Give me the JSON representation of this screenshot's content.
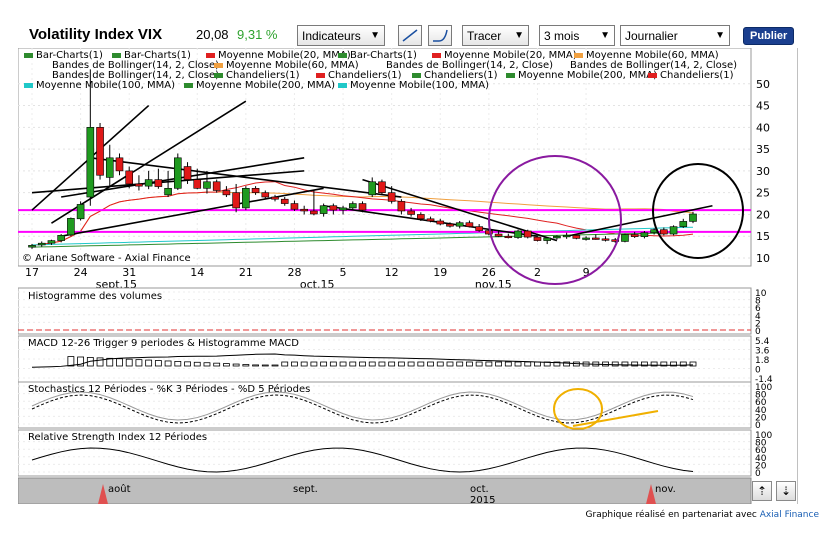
{
  "header": {
    "title": "Volatility Index VIX",
    "price": "20,08",
    "change": "9,31 %",
    "indicators_label": "Indicateurs",
    "draw_label": "Tracer",
    "period_value": "3 mois",
    "interval_value": "Journalier",
    "publish_label": "Publier"
  },
  "legend": [
    {
      "label": "Bar-Charts(1)",
      "color": "#2e8b2e"
    },
    {
      "label": "Bar-Charts(1)",
      "color": "#2e8b2e"
    },
    {
      "label": "Moyenne Mobile(20, MMA)",
      "color": "#e02020"
    },
    {
      "label": "Bar-Charts(1)",
      "color": "#2e8b2e"
    },
    {
      "label": "Moyenne Mobile(20, MMA)",
      "color": "#e02020"
    },
    {
      "label": "Moyenne Mobile(60, MMA)",
      "color": "#f0a040"
    },
    {
      "label": "Bandes de Bollinger(14, 2, Close)",
      "color": "#ffffff"
    },
    {
      "label": "Moyenne Mobile(60, MMA)",
      "color": "#f0a040"
    },
    {
      "label": "Bandes de Bollinger(14, 2, Close)",
      "color": "#ffffff"
    },
    {
      "label": "Bandes de Bollinger(14, 2, Close)",
      "color": "#ffffff"
    },
    {
      "label": "Bandes de Bollinger(14, 2, Close)",
      "color": "#ffffff"
    },
    {
      "label": "Chandeliers(1)",
      "color": "#2e8b2e"
    },
    {
      "label": "Chandeliers(1)",
      "color": "#e02020"
    },
    {
      "label": "Chandeliers(1)",
      "color": "#2e8b2e"
    },
    {
      "label": "Moyenne Mobile(200, MMA)",
      "color": "#2e8b2e"
    },
    {
      "label": "Chandeliers(1)",
      "color": "#e02020"
    },
    {
      "label": "Moyenne Mobile(100, MMA)",
      "color": "#20c8c8"
    },
    {
      "label": "Moyenne Mobile(200, MMA)",
      "color": "#2e8b2e"
    },
    {
      "label": "Moyenne Mobile(100, MMA)",
      "color": "#20c8c8"
    }
  ],
  "copyright": "© Ariane Software - Axial Finance",
  "panels": {
    "volume_title": "Histogramme des volumes",
    "macd_title": "MACD 12-26   Trigger 9 periodes & Histogramme MACD",
    "stoch_title": "Stochastics 12 Périodes  -  %K 3 Périodes  -  %D 5 Périodes",
    "rsi_title": "Relative Strength Index 12 Périodes"
  },
  "footer": {
    "text": "Graphique réalisé en partenariat avec",
    "link": "Axial Finance"
  },
  "chart_data": {
    "type": "candlestick",
    "x_ticks": [
      "17",
      "24",
      "31",
      "14",
      "21",
      "28",
      "5",
      "12",
      "19",
      "26",
      "2",
      "9"
    ],
    "month_labels": [
      "sept.15",
      "oct.15",
      "nov.15"
    ],
    "ylim": [
      10,
      55
    ],
    "y_ticks": [
      10,
      15,
      20,
      25,
      30,
      35,
      40,
      45,
      50
    ],
    "candles": [
      {
        "o": 12.5,
        "h": 13.2,
        "l": 12.1,
        "c": 12.9
      },
      {
        "o": 13.0,
        "h": 13.8,
        "l": 12.6,
        "c": 13.4
      },
      {
        "o": 13.4,
        "h": 14.2,
        "l": 13.0,
        "c": 14.0
      },
      {
        "o": 14.0,
        "h": 15.5,
        "l": 13.6,
        "c": 15.2
      },
      {
        "o": 15.3,
        "h": 19.3,
        "l": 15.0,
        "c": 19.1
      },
      {
        "o": 19.0,
        "h": 23.0,
        "l": 18.6,
        "c": 22.3
      },
      {
        "o": 24.0,
        "h": 53.3,
        "l": 22.0,
        "c": 40.0
      },
      {
        "o": 40.0,
        "h": 41.0,
        "l": 28.0,
        "c": 29.0
      },
      {
        "o": 28.5,
        "h": 36.0,
        "l": 26.5,
        "c": 33.0
      },
      {
        "o": 33.0,
        "h": 34.0,
        "l": 29.0,
        "c": 30.0
      },
      {
        "o": 30.0,
        "h": 31.0,
        "l": 26.0,
        "c": 27.0
      },
      {
        "o": 27.0,
        "h": 29.0,
        "l": 25.5,
        "c": 26.5
      },
      {
        "o": 26.5,
        "h": 30.0,
        "l": 25.8,
        "c": 28.0
      },
      {
        "o": 28.0,
        "h": 30.5,
        "l": 25.9,
        "c": 26.4
      },
      {
        "o": 24.5,
        "h": 30.0,
        "l": 24.0,
        "c": 26.0
      },
      {
        "o": 26.0,
        "h": 34.0,
        "l": 25.6,
        "c": 33.0
      },
      {
        "o": 31.0,
        "h": 32.0,
        "l": 27.0,
        "c": 28.0
      },
      {
        "o": 28.0,
        "h": 30.5,
        "l": 25.8,
        "c": 26.0
      },
      {
        "o": 26.0,
        "h": 30.0,
        "l": 24.8,
        "c": 27.5
      },
      {
        "o": 27.5,
        "h": 28.0,
        "l": 25.0,
        "c": 25.5
      },
      {
        "o": 25.5,
        "h": 26.5,
        "l": 24.0,
        "c": 24.5
      },
      {
        "o": 25.0,
        "h": 27.0,
        "l": 20.5,
        "c": 21.5
      },
      {
        "o": 21.5,
        "h": 26.5,
        "l": 21.0,
        "c": 26.0
      },
      {
        "o": 26.0,
        "h": 26.5,
        "l": 24.5,
        "c": 25.0
      },
      {
        "o": 25.0,
        "h": 25.5,
        "l": 23.5,
        "c": 24.0
      },
      {
        "o": 24.0,
        "h": 24.5,
        "l": 23.0,
        "c": 23.5
      },
      {
        "o": 23.5,
        "h": 24.0,
        "l": 22.0,
        "c": 22.5
      },
      {
        "o": 22.5,
        "h": 23.2,
        "l": 20.8,
        "c": 21.2
      },
      {
        "o": 21.2,
        "h": 22.0,
        "l": 20.0,
        "c": 20.8
      },
      {
        "o": 20.8,
        "h": 25.5,
        "l": 19.8,
        "c": 20.1
      },
      {
        "o": 20.2,
        "h": 22.5,
        "l": 19.5,
        "c": 22.0
      },
      {
        "o": 22.0,
        "h": 22.5,
        "l": 20.0,
        "c": 21.0
      },
      {
        "o": 21.0,
        "h": 22.0,
        "l": 20.0,
        "c": 21.5
      },
      {
        "o": 21.5,
        "h": 23.0,
        "l": 21.0,
        "c": 22.5
      },
      {
        "o": 22.5,
        "h": 23.0,
        "l": 20.5,
        "c": 21.0
      },
      {
        "o": 24.5,
        "h": 28.5,
        "l": 24.0,
        "c": 27.5
      },
      {
        "o": 27.5,
        "h": 28.0,
        "l": 24.5,
        "c": 25.0
      },
      {
        "o": 25.0,
        "h": 26.5,
        "l": 22.5,
        "c": 23.0
      },
      {
        "o": 23.0,
        "h": 23.5,
        "l": 20.0,
        "c": 20.8
      },
      {
        "o": 20.8,
        "h": 21.5,
        "l": 19.5,
        "c": 20.0
      },
      {
        "o": 20.0,
        "h": 20.5,
        "l": 18.5,
        "c": 19.0
      },
      {
        "o": 19.0,
        "h": 19.5,
        "l": 18.2,
        "c": 18.5
      },
      {
        "o": 18.5,
        "h": 19.0,
        "l": 17.5,
        "c": 17.8
      },
      {
        "o": 17.8,
        "h": 18.2,
        "l": 17.0,
        "c": 17.3
      },
      {
        "o": 17.3,
        "h": 18.5,
        "l": 16.8,
        "c": 18.1
      },
      {
        "o": 18.1,
        "h": 18.6,
        "l": 17.0,
        "c": 17.2
      },
      {
        "o": 17.2,
        "h": 17.8,
        "l": 16.0,
        "c": 16.3
      },
      {
        "o": 16.3,
        "h": 16.8,
        "l": 15.2,
        "c": 15.5
      },
      {
        "o": 15.5,
        "h": 16.2,
        "l": 14.8,
        "c": 15.0
      },
      {
        "o": 15.0,
        "h": 15.6,
        "l": 14.5,
        "c": 14.7
      },
      {
        "o": 14.7,
        "h": 16.5,
        "l": 14.4,
        "c": 16.2
      },
      {
        "o": 16.2,
        "h": 16.5,
        "l": 14.5,
        "c": 14.8
      },
      {
        "o": 14.8,
        "h": 15.0,
        "l": 13.8,
        "c": 14.0
      },
      {
        "o": 14.0,
        "h": 14.8,
        "l": 13.2,
        "c": 14.6
      },
      {
        "o": 14.6,
        "h": 15.2,
        "l": 14.2,
        "c": 15.0
      },
      {
        "o": 15.0,
        "h": 15.8,
        "l": 14.4,
        "c": 15.2
      },
      {
        "o": 15.2,
        "h": 15.5,
        "l": 14.3,
        "c": 14.5
      },
      {
        "o": 14.5,
        "h": 15.0,
        "l": 14.0,
        "c": 14.6
      },
      {
        "o": 14.6,
        "h": 15.4,
        "l": 14.2,
        "c": 14.4
      },
      {
        "o": 14.4,
        "h": 15.0,
        "l": 13.8,
        "c": 14.2
      },
      {
        "o": 14.2,
        "h": 14.6,
        "l": 13.5,
        "c": 13.8
      },
      {
        "o": 13.8,
        "h": 15.6,
        "l": 13.6,
        "c": 15.4
      },
      {
        "o": 15.4,
        "h": 16.0,
        "l": 14.6,
        "c": 14.9
      },
      {
        "o": 14.9,
        "h": 16.2,
        "l": 14.5,
        "c": 15.8
      },
      {
        "o": 15.8,
        "h": 16.8,
        "l": 15.4,
        "c": 16.5
      },
      {
        "o": 16.5,
        "h": 17.0,
        "l": 15.2,
        "c": 15.5
      },
      {
        "o": 15.5,
        "h": 17.5,
        "l": 15.2,
        "c": 17.2
      },
      {
        "o": 17.2,
        "h": 19.0,
        "l": 16.9,
        "c": 18.4
      },
      {
        "o": 18.4,
        "h": 20.6,
        "l": 18.0,
        "c": 20.1
      }
    ],
    "horizontal_levels": [
      {
        "value": 21.0,
        "color": "#ff00ff"
      },
      {
        "value": 16.0,
        "color": "#ff00ff"
      }
    ],
    "volume_axis": [
      10,
      8,
      6,
      4,
      2,
      0
    ],
    "macd_axis": [
      5.4,
      3.6,
      1.8,
      0,
      -1.4
    ],
    "stoch_axis": [
      100,
      80,
      60,
      40,
      20,
      0
    ],
    "rsi_axis": [
      100,
      80,
      60,
      40,
      20,
      0
    ],
    "navigator_labels": [
      "août",
      "sept.",
      "oct.",
      "nov."
    ],
    "navigator_year": "2015"
  }
}
